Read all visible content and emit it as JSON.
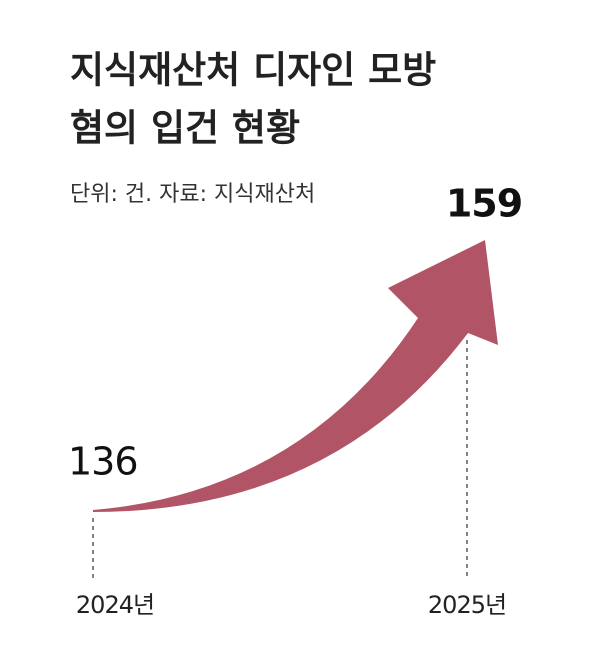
{
  "chart_data": {
    "type": "line",
    "title": [
      "지식재산처 디자인 모방",
      "혐의 입건 현황"
    ],
    "subtitle": "단위: 건. 자료: 지식재산처",
    "categories": [
      "2024년",
      "2025년"
    ],
    "values": [
      136,
      159
    ],
    "color": "#b15566",
    "highlight_color": "#b03a4e"
  }
}
